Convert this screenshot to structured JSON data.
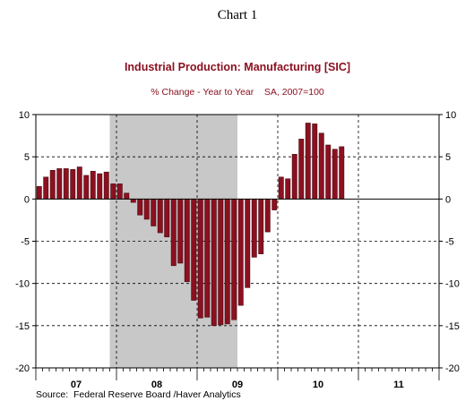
{
  "header": "Chart 1",
  "source": "Source:  Federal Reserve Board /Haver Analytics",
  "colors": {
    "bar": "#8b1020",
    "bar_edge": "#3a0008",
    "title": "#8b1020",
    "recession": "#c8c8c8",
    "grid": "#000000"
  },
  "chart_data": {
    "type": "bar",
    "title": "Industrial Production: Manufacturing [SIC]",
    "subtitle": "% Change - Year to Year    SA, 2007=100",
    "ylim": [
      -20,
      10
    ],
    "yticks": [
      10,
      5,
      0,
      -5,
      -10,
      -15,
      -20
    ],
    "grid": true,
    "x_start": "2007-01",
    "x_end": "2011-12",
    "year_labels": [
      "07",
      "08",
      "09",
      "10",
      "11"
    ],
    "recession": {
      "start": "2007-12",
      "end": "2009-06"
    },
    "series": [
      {
        "months": [
          "2007-01",
          "2007-02",
          "2007-03",
          "2007-04",
          "2007-05",
          "2007-06",
          "2007-07",
          "2007-08",
          "2007-09",
          "2007-10",
          "2007-11",
          "2007-12",
          "2008-01",
          "2008-02",
          "2008-03",
          "2008-04",
          "2008-05",
          "2008-06",
          "2008-07",
          "2008-08",
          "2008-09",
          "2008-10",
          "2008-11",
          "2008-12",
          "2009-01",
          "2009-02",
          "2009-03",
          "2009-04",
          "2009-05",
          "2009-06",
          "2009-07",
          "2009-08",
          "2009-09",
          "2009-10",
          "2009-11",
          "2009-12",
          "2010-01",
          "2010-02",
          "2010-03",
          "2010-04",
          "2010-05",
          "2010-06",
          "2010-07",
          "2010-08",
          "2010-09",
          "2010-10"
        ],
        "values": [
          1.5,
          2.6,
          3.4,
          3.6,
          3.6,
          3.5,
          3.8,
          2.8,
          3.3,
          3.0,
          3.2,
          1.8,
          1.8,
          0.7,
          -0.4,
          -1.9,
          -2.4,
          -3.2,
          -4.0,
          -4.5,
          -7.9,
          -7.6,
          -9.8,
          -12.0,
          -14.1,
          -14.0,
          -15.0,
          -14.9,
          -14.8,
          -14.3,
          -12.6,
          -10.5,
          -6.9,
          -6.5,
          -3.9,
          -1.3,
          2.6,
          2.4,
          5.3,
          7.1,
          9.0,
          8.9,
          7.8,
          6.4,
          5.9,
          6.2
        ]
      }
    ]
  }
}
